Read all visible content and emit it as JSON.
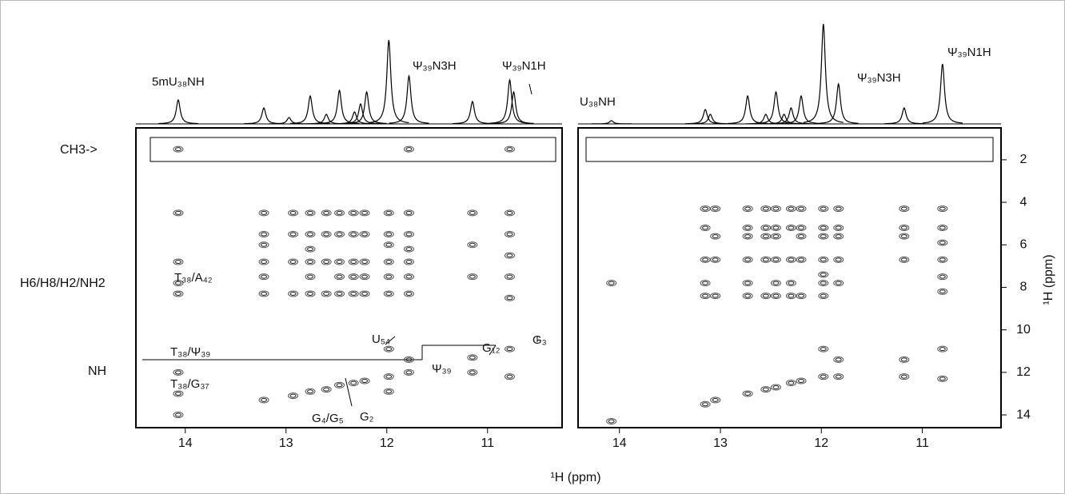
{
  "chart_data": [
    {
      "type": "nmr2d",
      "x_label": "¹H (ppm)",
      "xlim": [
        14.49,
        10.26
      ],
      "xticks": [
        14,
        13,
        12,
        11
      ],
      "ylim": [
        0.5,
        14.6
      ],
      "yticks": [],
      "row_labels": [
        "CH3->",
        "H6/H8/H2/NH2",
        "NH"
      ],
      "annotations": [
        "5mU₃₈NH",
        "Ψ₃₉N3H",
        "Ψ₃₉N1H",
        "T₃₈/A₄₂",
        "U₅₄",
        "G₁₂",
        "G₃",
        "T₃₈/Ψ₃₉",
        "Ψ₃₉",
        "T₃₈/G₃₇",
        "G₄/G₅",
        "G₂"
      ],
      "spectrum": {
        "x": [
          14.07,
          13.22,
          12.97,
          12.76,
          12.6,
          12.47,
          12.32,
          12.26,
          12.2,
          11.98,
          11.78,
          11.15,
          10.78,
          10.74
        ],
        "heights": [
          30,
          20,
          8,
          35,
          12,
          42,
          15,
          25,
          40,
          105,
          60,
          28,
          55,
          40
        ]
      },
      "peaks": {
        "x": [
          14.07,
          14.07,
          14.07,
          14.07,
          14.07,
          14.07,
          14.07,
          14.07,
          13.22,
          13.22,
          13.22,
          13.22,
          13.22,
          13.22,
          13.22,
          12.93,
          12.93,
          12.93,
          12.93,
          12.93,
          12.76,
          12.76,
          12.76,
          12.76,
          12.76,
          12.76,
          12.76,
          12.6,
          12.6,
          12.6,
          12.6,
          12.6,
          12.47,
          12.47,
          12.47,
          12.47,
          12.47,
          12.47,
          12.33,
          12.33,
          12.33,
          12.33,
          12.33,
          12.33,
          12.22,
          12.22,
          12.22,
          12.22,
          12.22,
          12.22,
          11.98,
          11.98,
          11.98,
          11.98,
          11.98,
          11.98,
          11.98,
          11.98,
          11.98,
          11.78,
          11.78,
          11.78,
          11.78,
          11.78,
          11.78,
          11.78,
          11.78,
          11.78,
          11.15,
          11.15,
          11.15,
          11.15,
          11.15,
          10.78,
          10.78,
          10.78,
          10.78,
          10.78,
          10.78,
          10.78,
          10.78
        ],
        "y": [
          1.5,
          4.5,
          6.8,
          7.8,
          8.3,
          12.0,
          13.0,
          14.0,
          4.5,
          5.5,
          6.0,
          6.8,
          7.5,
          8.3,
          13.3,
          4.5,
          5.5,
          6.8,
          8.3,
          13.1,
          4.5,
          5.5,
          6.2,
          6.8,
          7.5,
          8.3,
          12.9,
          4.5,
          5.5,
          6.8,
          8.3,
          12.8,
          4.5,
          5.5,
          6.8,
          7.5,
          8.3,
          12.6,
          4.5,
          5.5,
          6.8,
          7.5,
          8.3,
          12.5,
          4.5,
          5.5,
          6.8,
          7.5,
          8.3,
          12.4,
          4.5,
          5.5,
          6.0,
          6.8,
          7.5,
          8.3,
          10.9,
          12.2,
          12.9,
          1.5,
          4.5,
          5.5,
          6.2,
          6.8,
          7.5,
          8.3,
          11.4,
          12.0,
          4.5,
          6.0,
          7.5,
          11.3,
          12.0,
          1.5,
          4.5,
          5.5,
          6.5,
          7.5,
          8.5,
          10.9,
          12.2
        ]
      }
    },
    {
      "type": "nmr2d",
      "y_label": "¹H (ppm)",
      "xlim": [
        14.41,
        10.22
      ],
      "xticks": [
        14,
        13,
        12,
        11
      ],
      "ylim": [
        0.5,
        14.6
      ],
      "yticks": [
        2,
        4,
        6,
        8,
        10,
        12,
        14
      ],
      "annotations": [
        "U₃₈NH",
        "Ψ₃₉N3H",
        "Ψ₃₉N1H"
      ],
      "spectrum": {
        "x": [
          14.08,
          13.15,
          13.1,
          12.73,
          12.55,
          12.45,
          12.37,
          12.3,
          12.2,
          11.98,
          11.83,
          11.18,
          10.8
        ],
        "heights": [
          4,
          18,
          12,
          35,
          12,
          40,
          12,
          20,
          35,
          125,
          50,
          20,
          75
        ]
      },
      "peaks": {
        "x": [
          14.08,
          14.08,
          13.15,
          13.15,
          13.15,
          13.15,
          13.15,
          13.15,
          13.05,
          13.05,
          13.05,
          13.05,
          13.05,
          12.73,
          12.73,
          12.73,
          12.73,
          12.73,
          12.73,
          12.73,
          12.55,
          12.55,
          12.55,
          12.55,
          12.55,
          12.55,
          12.45,
          12.45,
          12.45,
          12.45,
          12.45,
          12.45,
          12.45,
          12.3,
          12.3,
          12.3,
          12.3,
          12.3,
          12.3,
          12.2,
          12.2,
          12.2,
          12.2,
          12.2,
          12.2,
          11.98,
          11.98,
          11.98,
          11.98,
          11.98,
          11.98,
          11.98,
          11.98,
          11.98,
          11.83,
          11.83,
          11.83,
          11.83,
          11.83,
          11.83,
          11.83,
          11.18,
          11.18,
          11.18,
          11.18,
          11.18,
          11.18,
          10.8,
          10.8,
          10.8,
          10.8,
          10.8,
          10.8,
          10.8,
          10.8
        ],
        "y": [
          7.8,
          14.3,
          4.3,
          5.2,
          6.7,
          7.8,
          8.4,
          13.5,
          4.3,
          5.6,
          6.7,
          8.4,
          13.3,
          4.3,
          5.2,
          5.6,
          6.7,
          7.8,
          8.4,
          13.0,
          4.3,
          5.2,
          5.6,
          6.7,
          8.4,
          12.8,
          4.3,
          5.2,
          5.6,
          6.7,
          7.8,
          8.4,
          12.7,
          4.3,
          5.2,
          6.7,
          7.8,
          8.4,
          12.5,
          4.3,
          5.2,
          5.6,
          6.7,
          8.4,
          12.4,
          4.3,
          5.2,
          5.6,
          6.7,
          7.4,
          7.8,
          8.4,
          10.9,
          12.2,
          4.3,
          5.2,
          5.6,
          6.7,
          7.8,
          11.4,
          12.2,
          4.3,
          5.2,
          5.6,
          6.7,
          11.4,
          12.2,
          4.3,
          5.2,
          5.9,
          6.7,
          7.5,
          8.2,
          10.9,
          12.3
        ]
      }
    }
  ]
}
